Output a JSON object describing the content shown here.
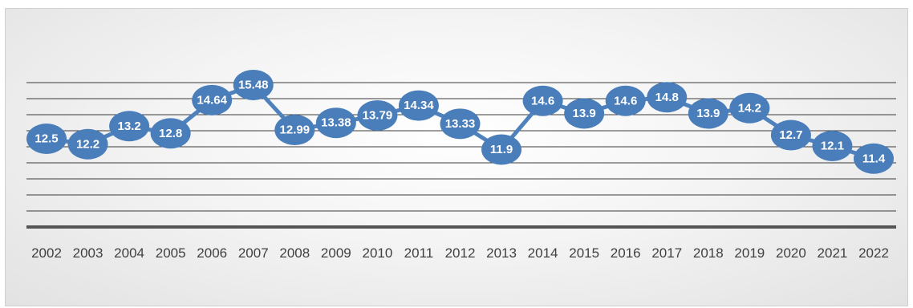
{
  "chart_data": {
    "type": "line",
    "title": "",
    "xlabel": "",
    "ylabel": "",
    "categories": [
      "2002",
      "2003",
      "2004",
      "2005",
      "2006",
      "2007",
      "2008",
      "2009",
      "2010",
      "2011",
      "2012",
      "2013",
      "2014",
      "2015",
      "2016",
      "2017",
      "2018",
      "2019",
      "2020",
      "2021",
      "2022"
    ],
    "series": [
      {
        "values": [
          12.5,
          12.2,
          13.2,
          12.8,
          14.64,
          15.48,
          12.99,
          13.38,
          13.79,
          14.34,
          13.33,
          11.9,
          14.6,
          13.9,
          14.6,
          14.8,
          13.9,
          14.2,
          12.7,
          12.1,
          11.4
        ],
        "labels": [
          "12.5",
          "12.2",
          "13.2",
          "12.8",
          "14.64",
          "15.48",
          "12.99",
          "13.38",
          "13.79",
          "14.34",
          "13.33",
          "11.9",
          "14.6",
          "13.9",
          "14.6",
          "14.8",
          "13.9",
          "14.2",
          "12.7",
          "12.1",
          "11.4"
        ],
        "color": "#4f81bd"
      }
    ],
    "gridlines": 10,
    "grid": true,
    "legend": "none",
    "y_axis_labels": "hidden",
    "data_labels": "on markers"
  }
}
